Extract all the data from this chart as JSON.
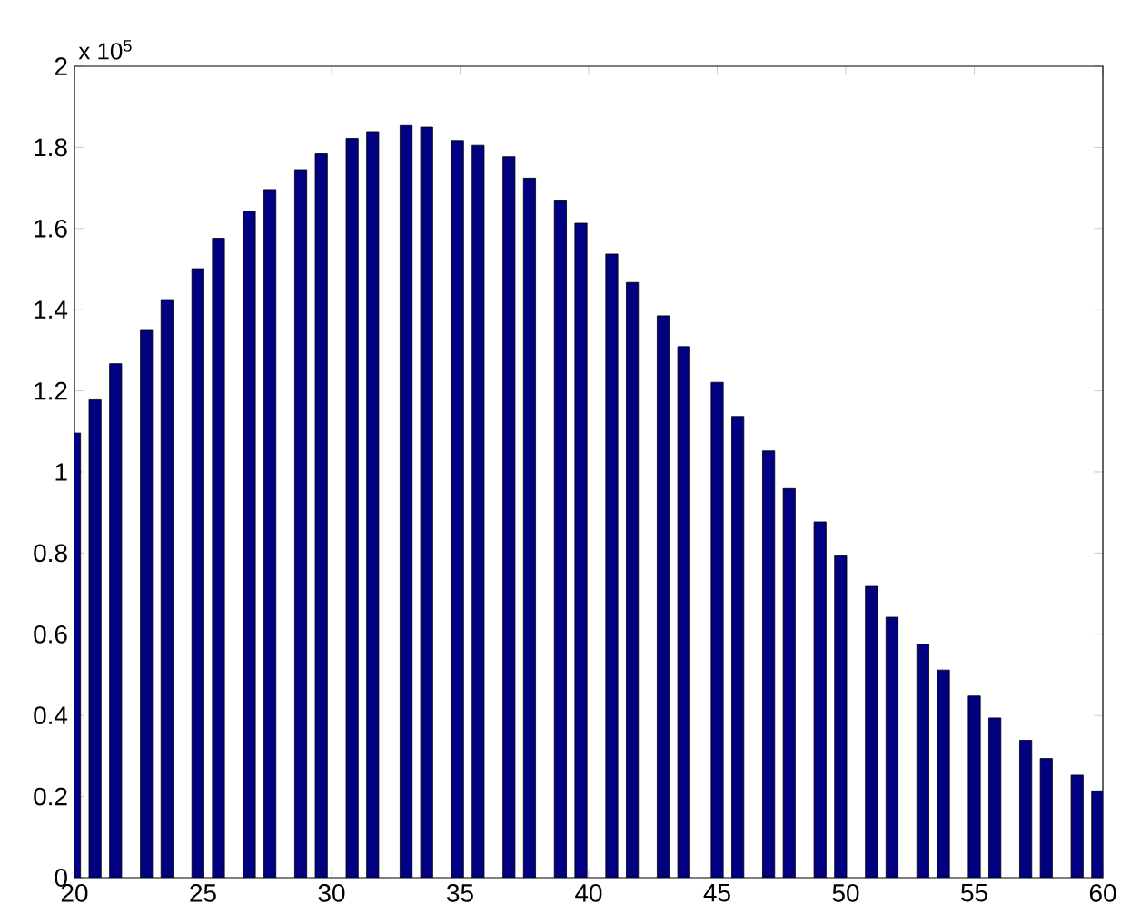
{
  "chart_data": {
    "type": "bar",
    "x": [
      20.0,
      20.8,
      21.6,
      22.8,
      23.6,
      24.8,
      25.6,
      26.8,
      27.6,
      28.8,
      29.6,
      30.8,
      31.6,
      32.9,
      33.7,
      34.9,
      35.7,
      36.9,
      37.7,
      38.9,
      39.7,
      40.9,
      41.7,
      42.9,
      43.7,
      45.0,
      45.8,
      47.0,
      47.8,
      49.0,
      49.8,
      51.0,
      51.8,
      53.0,
      53.8,
      55.0,
      55.8,
      57.0,
      57.8,
      59.0,
      59.8
    ],
    "values": [
      1.096,
      1.178,
      1.267,
      1.349,
      1.425,
      1.501,
      1.576,
      1.643,
      1.696,
      1.745,
      1.784,
      1.822,
      1.839,
      1.854,
      1.85,
      1.817,
      1.805,
      1.777,
      1.724,
      1.67,
      1.613,
      1.537,
      1.467,
      1.385,
      1.309,
      1.221,
      1.137,
      1.052,
      0.959,
      0.877,
      0.793,
      0.718,
      0.642,
      0.576,
      0.512,
      0.448,
      0.394,
      0.339,
      0.294,
      0.253,
      0.214
    ],
    "color": "#000080",
    "xlim": [
      20,
      60
    ],
    "xticks": [
      20,
      25,
      30,
      35,
      40,
      45,
      50,
      55,
      60
    ],
    "ylim": [
      0,
      2
    ],
    "yticks": [
      0,
      0.2,
      0.4,
      0.6,
      0.8,
      1,
      1.2,
      1.4,
      1.6,
      1.8,
      2
    ],
    "annotations": [
      "x 10$^{5}$"
    ]
  }
}
